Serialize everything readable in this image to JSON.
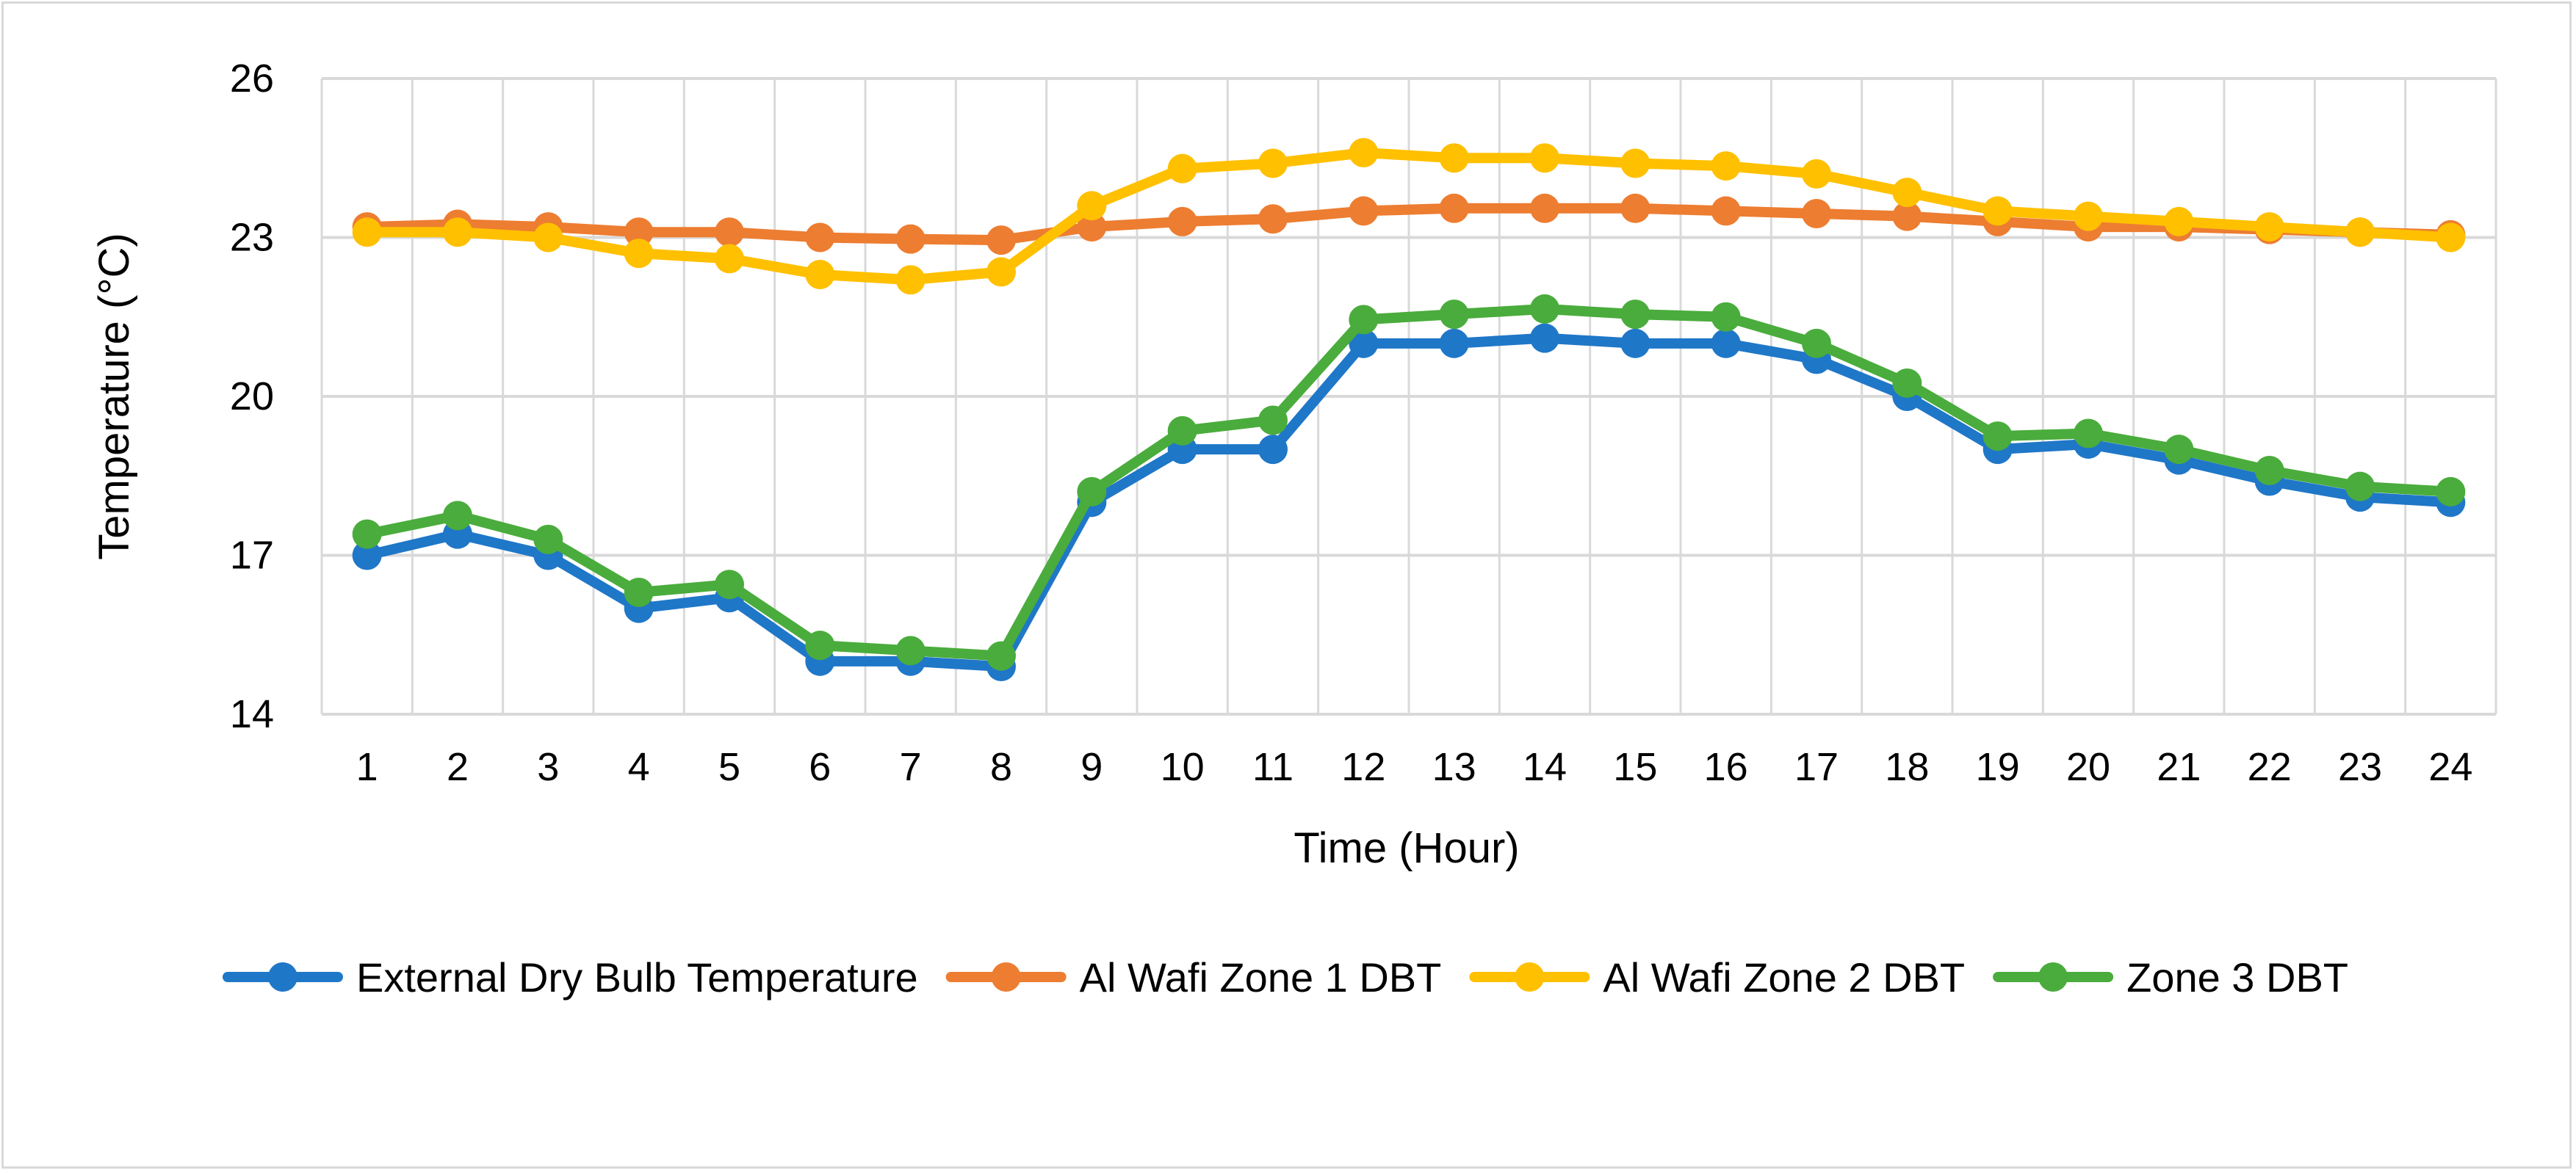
{
  "chart_data": {
    "type": "line",
    "title": "",
    "xlabel": "Time (Hour)",
    "ylabel": "Temperature (°C)",
    "ylim": [
      14,
      26
    ],
    "yticks": [
      "14",
      "17",
      "20",
      "23",
      "26"
    ],
    "categories": [
      "1",
      "2",
      "3",
      "4",
      "5",
      "6",
      "7",
      "8",
      "9",
      "10",
      "11",
      "12",
      "13",
      "14",
      "15",
      "16",
      "17",
      "18",
      "19",
      "20",
      "21",
      "22",
      "23",
      "24"
    ],
    "grid": true,
    "legend_position": "bottom",
    "series": [
      {
        "name": "External Dry Bulb Temperature",
        "color": "#1f77c8",
        "values": [
          17.0,
          17.4,
          17.0,
          16.0,
          16.2,
          15.0,
          15.0,
          14.9,
          18.0,
          19.0,
          19.0,
          21.0,
          21.0,
          21.1,
          21.0,
          21.0,
          20.7,
          20.0,
          19.0,
          19.1,
          18.8,
          18.4,
          18.1,
          18.0
        ]
      },
      {
        "name": "Al Wafi Zone 1 DBT",
        "color": "#ed7d31",
        "values": [
          23.2,
          23.25,
          23.2,
          23.1,
          23.1,
          23.0,
          22.97,
          22.95,
          23.2,
          23.3,
          23.35,
          23.5,
          23.55,
          23.55,
          23.55,
          23.5,
          23.45,
          23.4,
          23.3,
          23.2,
          23.2,
          23.15,
          23.1,
          23.05
        ]
      },
      {
        "name": "Al Wafi Zone 2 DBT",
        "color": "#ffc000",
        "values": [
          23.1,
          23.1,
          23.0,
          22.7,
          22.6,
          22.3,
          22.2,
          22.35,
          23.6,
          24.3,
          24.4,
          24.6,
          24.5,
          24.5,
          24.4,
          24.35,
          24.2,
          23.85,
          23.5,
          23.4,
          23.3,
          23.2,
          23.1,
          23.0
        ]
      },
      {
        "name": "Zone 3 DBT",
        "color": "#4aac3c",
        "values": [
          17.4,
          17.75,
          17.3,
          16.3,
          16.45,
          15.3,
          15.2,
          15.1,
          18.2,
          19.35,
          19.55,
          21.45,
          21.55,
          21.65,
          21.55,
          21.5,
          21.0,
          20.25,
          19.25,
          19.3,
          19.0,
          18.6,
          18.3,
          18.2
        ]
      }
    ]
  }
}
